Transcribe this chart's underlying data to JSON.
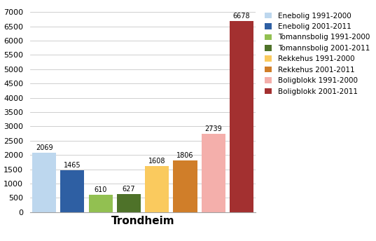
{
  "title": "Trondheim",
  "categories": [
    "Enebolig 1991-2000",
    "Enebolig 2001-2011",
    "Tomannsbolig 1991-2000",
    "Tomannsbolig 2001-2011",
    "Rekkehus 1991-2000",
    "Rekkehus 2001-2011",
    "Boligblokk 1991-2000",
    "Boligblokk 2001-2011"
  ],
  "values": [
    2069,
    1465,
    610,
    627,
    1608,
    1806,
    2739,
    6678
  ],
  "colors": [
    "#BDD7EE",
    "#2E5FA3",
    "#92C051",
    "#4E7229",
    "#FACA5E",
    "#D07E29",
    "#F4AFAB",
    "#A33030"
  ],
  "ylim": [
    0,
    7000
  ],
  "yticks": [
    0,
    500,
    1000,
    1500,
    2000,
    2500,
    3000,
    3500,
    4000,
    4500,
    5000,
    5500,
    6000,
    6500,
    7000
  ],
  "bar_width": 0.85,
  "title_fontsize": 11,
  "legend_fontsize": 7.5,
  "label_fontsize": 7,
  "tick_fontsize": 8,
  "background_color": "#FFFFFF",
  "grid_color": "#C8C8C8"
}
